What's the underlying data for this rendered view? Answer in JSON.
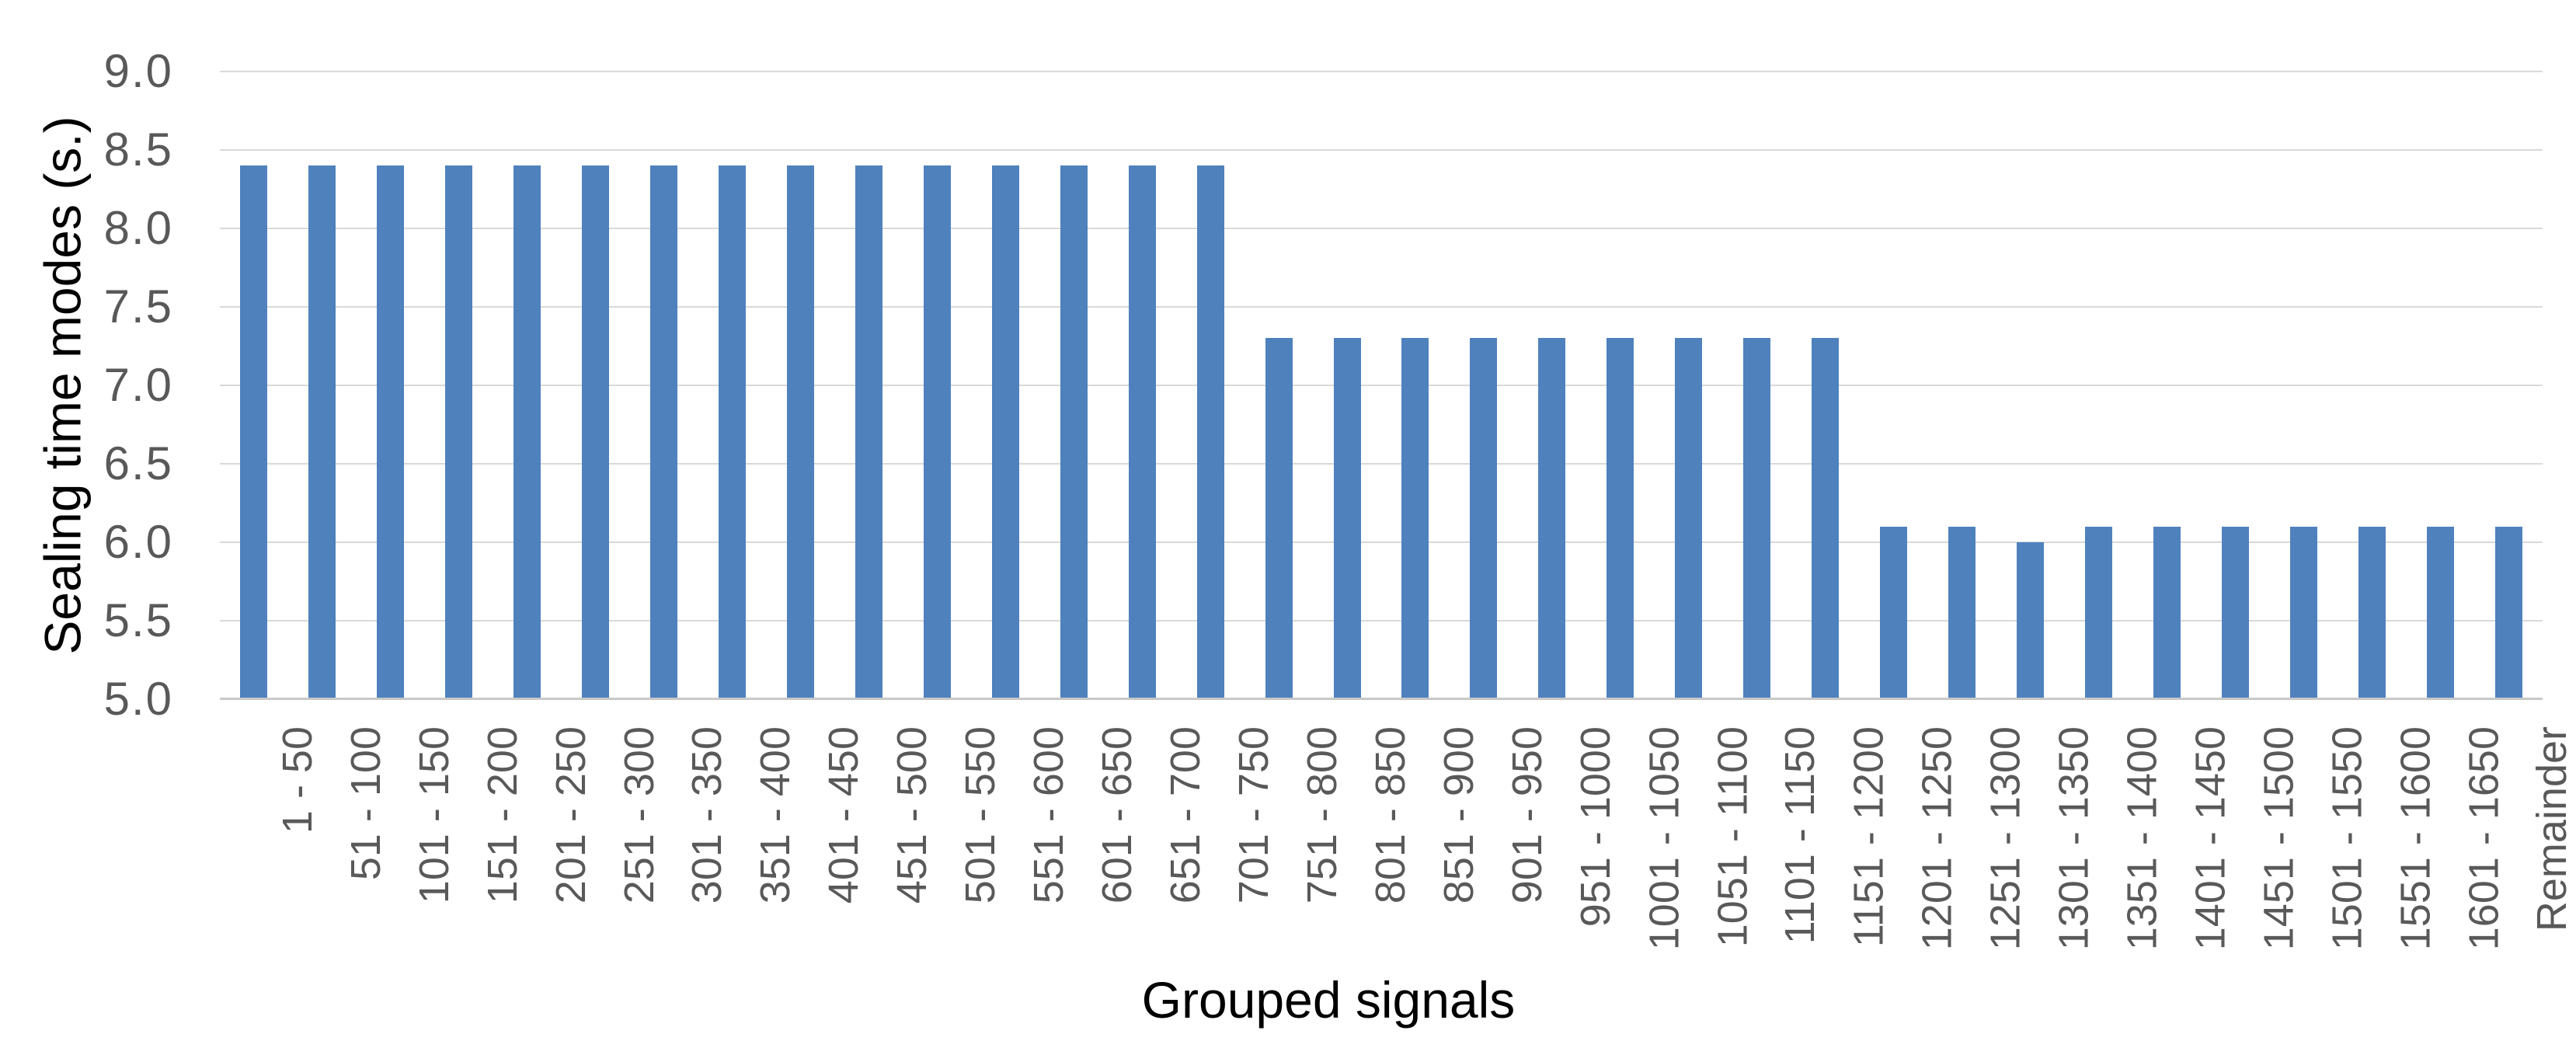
{
  "chart_data": {
    "type": "bar",
    "title": "",
    "xlabel": "Grouped signals",
    "ylabel": "Sealing time modes (s.)",
    "categories": [
      "1 - 50",
      "51 - 100",
      "101 - 150",
      "151 - 200",
      "201 - 250",
      "251 - 300",
      "301 - 350",
      "351 - 400",
      "401 - 450",
      "451 - 500",
      "501 - 550",
      "551 - 600",
      "601 - 650",
      "651 - 700",
      "701 - 750",
      "751 - 800",
      "801 - 850",
      "851 - 900",
      "901 - 950",
      "951 - 1000",
      "1001 - 1050",
      "1051 - 1100",
      "1101 - 1150",
      "1151 - 1200",
      "1201 - 1250",
      "1251 - 1300",
      "1301 - 1350",
      "1351 - 1400",
      "1401 - 1450",
      "1451 - 1500",
      "1501 - 1550",
      "1551 - 1600",
      "1601 - 1650",
      "Remainder"
    ],
    "values": [
      8.4,
      8.4,
      8.4,
      8.4,
      8.4,
      8.4,
      8.4,
      8.4,
      8.4,
      8.4,
      8.4,
      8.4,
      8.4,
      8.4,
      8.4,
      7.3,
      7.3,
      7.3,
      7.3,
      7.3,
      7.3,
      7.3,
      7.3,
      7.3,
      6.1,
      6.1,
      6.0,
      6.1,
      6.1,
      6.1,
      6.1,
      6.1,
      6.1,
      6.1
    ],
    "ylim": [
      5.0,
      9.0
    ],
    "ytick_labels": [
      "9.0",
      "8.5",
      "8.0",
      "7.5",
      "7.0",
      "6.5",
      "6.0",
      "5.5",
      "5.0"
    ],
    "grid": true,
    "legend": false,
    "colors": {
      "bar": "#4F81BD",
      "gridline": "#D9D9D9",
      "axis_line": "#C8C8C8",
      "tick_label": "#595959",
      "axis_title": "#000000",
      "background": "#FFFFFF"
    }
  }
}
